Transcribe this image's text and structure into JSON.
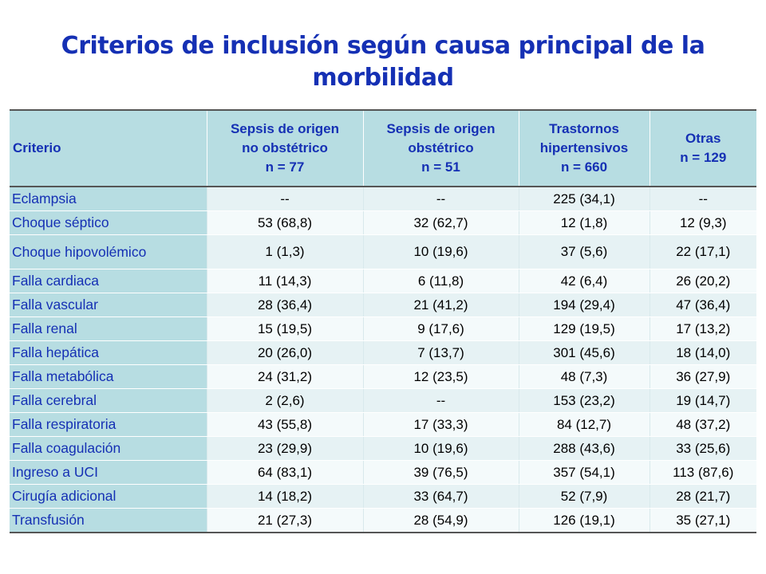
{
  "title_line1": "Criterios de inclusión según causa principal de la",
  "title_line2": "morbilidad",
  "headers": [
    [
      "Criterio"
    ],
    [
      "Sepsis de origen",
      "no obstétrico",
      "n = 77"
    ],
    [
      "Sepsis de origen",
      "obstétrico",
      "n = 51"
    ],
    [
      "Trastornos",
      "hipertensivos",
      "n = 660"
    ],
    [
      "Otras",
      "n = 129"
    ]
  ],
  "rows": [
    {
      "label": "Eclampsia",
      "values": [
        "--",
        "--",
        "225 (34,1)",
        "--"
      ]
    },
    {
      "label": "Choque séptico",
      "values": [
        "53 (68,8)",
        "32 (62,7)",
        "12 (1,8)",
        "12 (9,3)"
      ]
    },
    {
      "label": "Choque hipovolémico",
      "values": [
        "1 (1,3)",
        "10 (19,6)",
        "37 (5,6)",
        "22 (17,1)"
      ]
    },
    {
      "label": "Falla cardiaca",
      "values": [
        "11 (14,3)",
        "6 (11,8)",
        "42 (6,4)",
        "26 (20,2)"
      ]
    },
    {
      "label": "Falla vascular",
      "values": [
        "28 (36,4)",
        "21 (41,2)",
        "194 (29,4)",
        "47 (36,4)"
      ]
    },
    {
      "label": "Falla renal",
      "values": [
        "15 (19,5)",
        "9 (17,6)",
        "129 (19,5)",
        "17 (13,2)"
      ]
    },
    {
      "label": "Falla hepática",
      "values": [
        "20 (26,0)",
        "7 (13,7)",
        "301 (45,6)",
        "18 (14,0)"
      ]
    },
    {
      "label": "Falla metabólica",
      "values": [
        "24 (31,2)",
        "12 (23,5)",
        "48 (7,3)",
        "36 (27,9)"
      ]
    },
    {
      "label": "Falla cerebral",
      "values": [
        "2 (2,6)",
        "--",
        "153 (23,2)",
        "19 (14,7)"
      ]
    },
    {
      "label": "Falla respiratoria",
      "values": [
        "43 (55,8)",
        "17 (33,3)",
        "84 (12,7)",
        "48 (37,2)"
      ]
    },
    {
      "label": "Falla coagulación",
      "values": [
        "23 (29,9)",
        "10 (19,6)",
        "288 (43,6)",
        "33 (25,6)"
      ]
    },
    {
      "label": "Ingreso a UCI",
      "values": [
        "64 (83,1)",
        "39 (76,5)",
        "357 (54,1)",
        "113 (87,6)"
      ]
    },
    {
      "label": "Cirugía adicional",
      "values": [
        "14 (18,2)",
        "33 (64,7)",
        "52 (7,9)",
        "28 (21,7)"
      ]
    },
    {
      "label": "Transfusión",
      "values": [
        "21 (27,3)",
        "28 (54,9)",
        "126 (19,1)",
        "35 (27,1)"
      ]
    }
  ],
  "colors": {
    "title": "#1530b4",
    "header_bg": "#b7dde2",
    "row_odd": "#e6f2f4",
    "row_even": "#f4fafb"
  }
}
